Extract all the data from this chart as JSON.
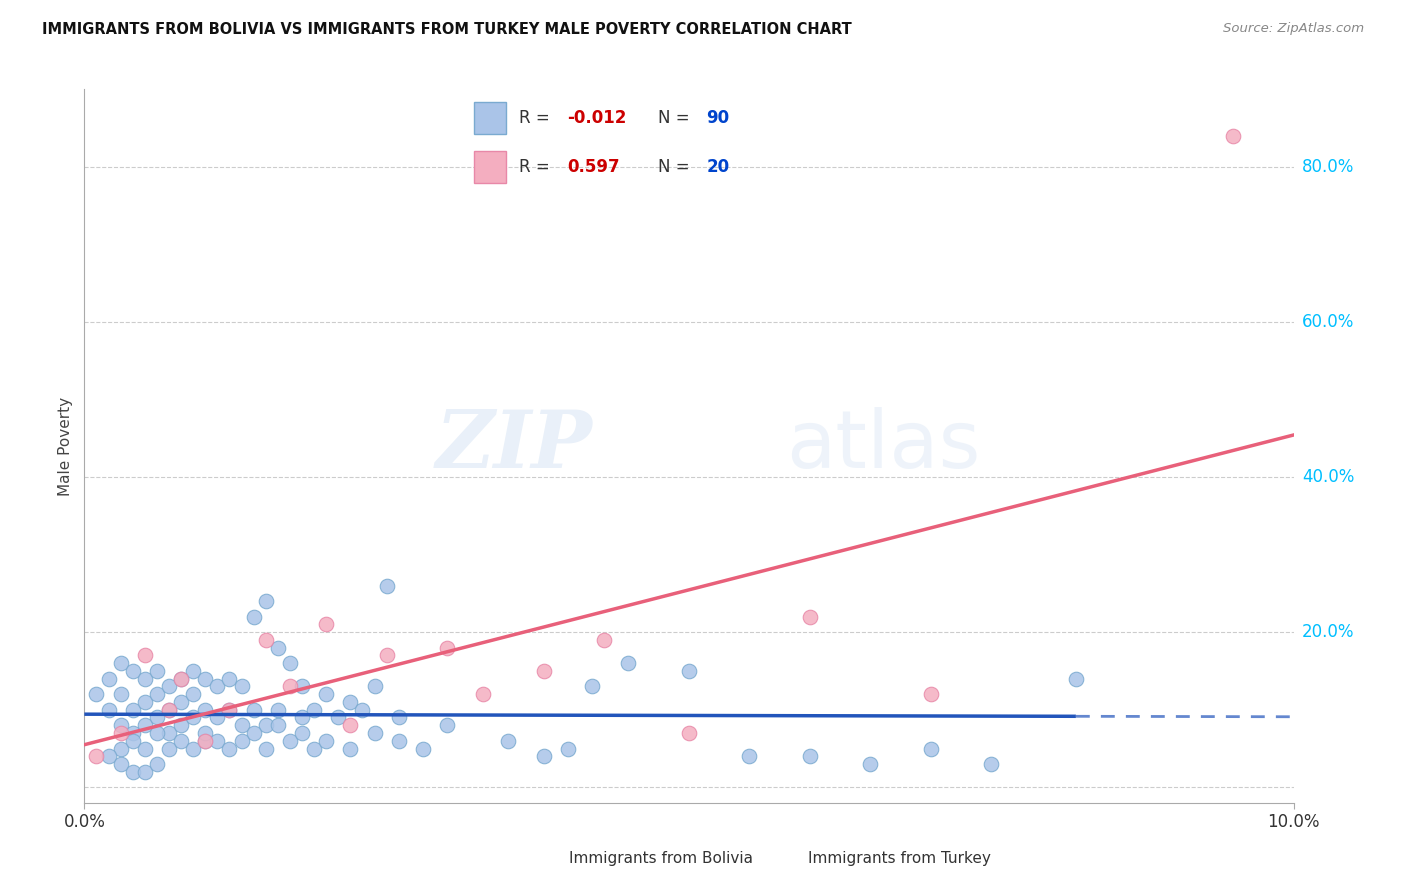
{
  "title": "IMMIGRANTS FROM BOLIVIA VS IMMIGRANTS FROM TURKEY MALE POVERTY CORRELATION CHART",
  "source": "Source: ZipAtlas.com",
  "ylabel": "Male Poverty",
  "xlim": [
    0.0,
    0.1
  ],
  "ylim": [
    -0.02,
    0.9
  ],
  "ytick_values": [
    0.0,
    0.2,
    0.4,
    0.6,
    0.8
  ],
  "ytick_labels": [
    "",
    "20.0%",
    "40.0%",
    "60.0%",
    "80.0%"
  ],
  "xtick_values": [
    0.0,
    0.1
  ],
  "xtick_labels": [
    "0.0%",
    "10.0%"
  ],
  "bolivia_color": "#aac4e8",
  "bolivia_edge_color": "#7aaad0",
  "turkey_color": "#f4aec0",
  "turkey_edge_color": "#e888a8",
  "bolivia_line_color": "#2255bb",
  "bolivia_line_solid_end": 0.082,
  "turkey_line_color": "#e8607a",
  "bolivia_R": -0.012,
  "bolivia_N": 90,
  "turkey_R": 0.597,
  "turkey_N": 20,
  "background_color": "#ffffff",
  "grid_color": "#cccccc",
  "watermark_zip": "ZIP",
  "watermark_atlas": "atlas",
  "right_tick_color": "#00bfff",
  "legend_R_color": "#cc0000",
  "legend_N_color": "#0044cc",
  "bolivia_scatter_x": [
    0.001,
    0.002,
    0.002,
    0.003,
    0.003,
    0.003,
    0.004,
    0.004,
    0.004,
    0.005,
    0.005,
    0.005,
    0.006,
    0.006,
    0.006,
    0.007,
    0.007,
    0.007,
    0.008,
    0.008,
    0.008,
    0.009,
    0.009,
    0.009,
    0.01,
    0.01,
    0.01,
    0.011,
    0.011,
    0.012,
    0.012,
    0.013,
    0.013,
    0.014,
    0.014,
    0.015,
    0.015,
    0.016,
    0.016,
    0.017,
    0.018,
    0.018,
    0.019,
    0.02,
    0.021,
    0.022,
    0.023,
    0.024,
    0.025,
    0.026,
    0.003,
    0.004,
    0.005,
    0.006,
    0.007,
    0.008,
    0.009,
    0.01,
    0.011,
    0.012,
    0.013,
    0.014,
    0.015,
    0.016,
    0.017,
    0.018,
    0.019,
    0.02,
    0.022,
    0.024,
    0.026,
    0.028,
    0.03,
    0.035,
    0.038,
    0.04,
    0.042,
    0.045,
    0.05,
    0.055,
    0.06,
    0.065,
    0.07,
    0.075,
    0.082,
    0.002,
    0.003,
    0.004,
    0.005,
    0.006
  ],
  "bolivia_scatter_y": [
    0.12,
    0.14,
    0.1,
    0.16,
    0.12,
    0.08,
    0.15,
    0.1,
    0.07,
    0.14,
    0.11,
    0.08,
    0.15,
    0.12,
    0.09,
    0.13,
    0.1,
    0.07,
    0.14,
    0.11,
    0.08,
    0.15,
    0.12,
    0.09,
    0.14,
    0.1,
    0.06,
    0.13,
    0.09,
    0.14,
    0.1,
    0.13,
    0.08,
    0.22,
    0.1,
    0.24,
    0.08,
    0.18,
    0.1,
    0.16,
    0.09,
    0.13,
    0.1,
    0.12,
    0.09,
    0.11,
    0.1,
    0.13,
    0.26,
    0.09,
    0.05,
    0.06,
    0.05,
    0.07,
    0.05,
    0.06,
    0.05,
    0.07,
    0.06,
    0.05,
    0.06,
    0.07,
    0.05,
    0.08,
    0.06,
    0.07,
    0.05,
    0.06,
    0.05,
    0.07,
    0.06,
    0.05,
    0.08,
    0.06,
    0.04,
    0.05,
    0.13,
    0.16,
    0.15,
    0.04,
    0.04,
    0.03,
    0.05,
    0.03,
    0.14,
    0.04,
    0.03,
    0.02,
    0.02,
    0.03
  ],
  "turkey_scatter_x": [
    0.001,
    0.003,
    0.005,
    0.007,
    0.008,
    0.01,
    0.012,
    0.015,
    0.017,
    0.02,
    0.022,
    0.025,
    0.03,
    0.033,
    0.038,
    0.043,
    0.05,
    0.06,
    0.07,
    0.095
  ],
  "turkey_scatter_y": [
    0.04,
    0.07,
    0.17,
    0.1,
    0.14,
    0.06,
    0.1,
    0.19,
    0.13,
    0.21,
    0.08,
    0.17,
    0.18,
    0.12,
    0.15,
    0.19,
    0.07,
    0.22,
    0.12,
    0.84
  ]
}
